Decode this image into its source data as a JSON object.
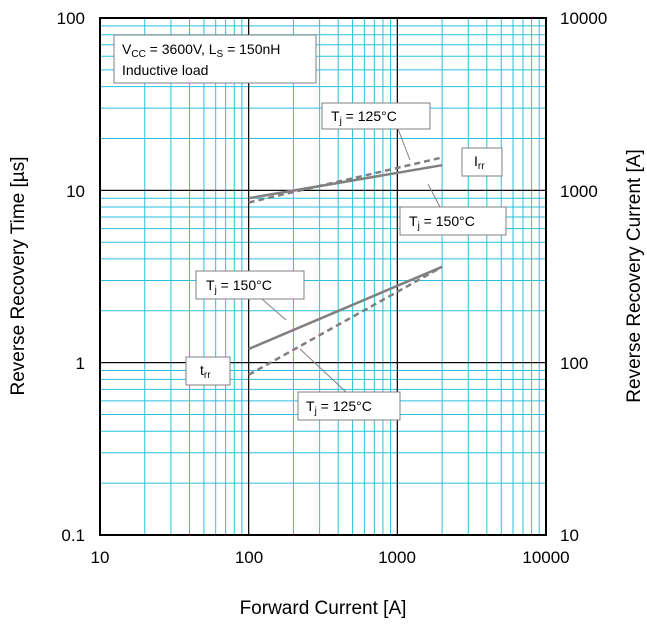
{
  "chart_data": {
    "type": "line",
    "title": "",
    "xlabel": "Forward Current [A]",
    "ylabel": "Reverse Recovery Time [µs]",
    "ylabel_right": "Reverse Recovery Current [A]",
    "xscale": "log",
    "yscale": "log",
    "xlim": [
      10,
      10000
    ],
    "ylim": [
      0.1,
      100
    ],
    "ylim_right": [
      10,
      10000
    ],
    "x_ticks": [
      "10",
      "100",
      "1000",
      "10000"
    ],
    "y_ticks": [
      "0.1",
      "1",
      "10",
      "100"
    ],
    "y_ticks_right": [
      "10",
      "100",
      "1000",
      "10000"
    ],
    "grid": true,
    "grid_color": "#29c0e0",
    "series": [
      {
        "axis": "right",
        "style": "solid",
        "color": "#808080",
        "x": [
          100,
          2000
        ],
        "y": [
          900,
          1400
        ]
      },
      {
        "axis": "right",
        "style": "dashed",
        "color": "#808080",
        "x": [
          100,
          2000
        ],
        "y": [
          850,
          1550
        ]
      },
      {
        "axis": "left",
        "style": "solid",
        "color": "#808080",
        "x": [
          100,
          2000
        ],
        "y": [
          1.2,
          3.6
        ]
      },
      {
        "axis": "left",
        "style": "dashed",
        "color": "#808080",
        "x": [
          100,
          2000
        ],
        "y": [
          0.85,
          3.6
        ]
      }
    ],
    "annotations": {
      "conditions": {
        "vcc_main": "V",
        "vcc_sub": "CC",
        "vcc_rest": " = 3600V, L",
        "ls_sub": "S",
        "ls_rest": " = 150nH",
        "line2": "Inductive load"
      },
      "irr_tj125": {
        "main": "T",
        "sub": "j",
        "rest": " = 125°C"
      },
      "irr_label": {
        "main": "I",
        "sub": "rr"
      },
      "irr_tj150": {
        "main": "T",
        "sub": "j",
        "rest": " = 150°C"
      },
      "trr_tj150": {
        "main": "T",
        "sub": "j",
        "rest": " = 150°C"
      },
      "trr_label": {
        "main": "t",
        "sub": "rr"
      },
      "trr_tj125": {
        "main": "T",
        "sub": "j",
        "rest": " = 125°C"
      }
    }
  }
}
